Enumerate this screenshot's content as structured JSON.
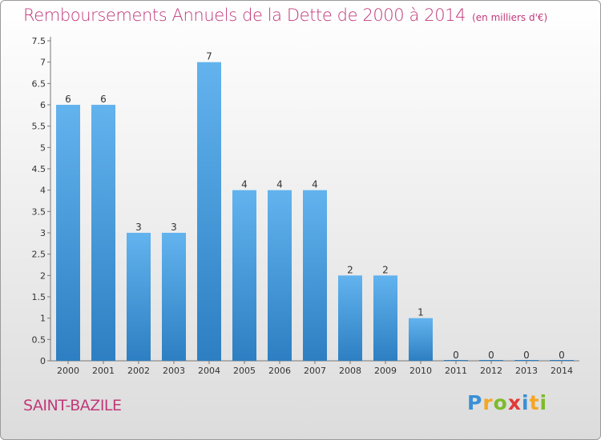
{
  "header": {
    "title": "Remboursements Annuels de la Dette de 2000 à 2014",
    "subtitle": "(en milliers d'€)"
  },
  "footer": {
    "commune": "SAINT-BAZILE",
    "logo_text": "Proxiti"
  },
  "colors": {
    "title": "#c0397a",
    "bar_top": "#62b3ee",
    "bar_bottom": "#2d7fc2"
  },
  "chart_data": {
    "type": "bar",
    "title": "Remboursements Annuels de la Dette de 2000 à 2014",
    "xlabel": "",
    "ylabel": "",
    "categories": [
      "2000",
      "2001",
      "2002",
      "2003",
      "2004",
      "2005",
      "2006",
      "2007",
      "2008",
      "2009",
      "2010",
      "2011",
      "2012",
      "2013",
      "2014"
    ],
    "values": [
      6,
      6,
      3,
      3,
      7,
      4,
      4,
      4,
      2,
      2,
      1,
      0,
      0,
      0,
      0
    ],
    "data_labels": [
      "6",
      "6",
      "3",
      "3",
      "7",
      "4",
      "4",
      "4",
      "2",
      "2",
      "1",
      "0",
      "0",
      "0",
      "0"
    ],
    "ylim": [
      0,
      7.5
    ],
    "yticks": [
      "0",
      "0.5",
      "1",
      "1.5",
      "2",
      "2.5",
      "3",
      "3.5",
      "4",
      "4.5",
      "5",
      "5.5",
      "6",
      "6.5",
      "7",
      "7.5"
    ],
    "grid": false,
    "legend": "none"
  }
}
